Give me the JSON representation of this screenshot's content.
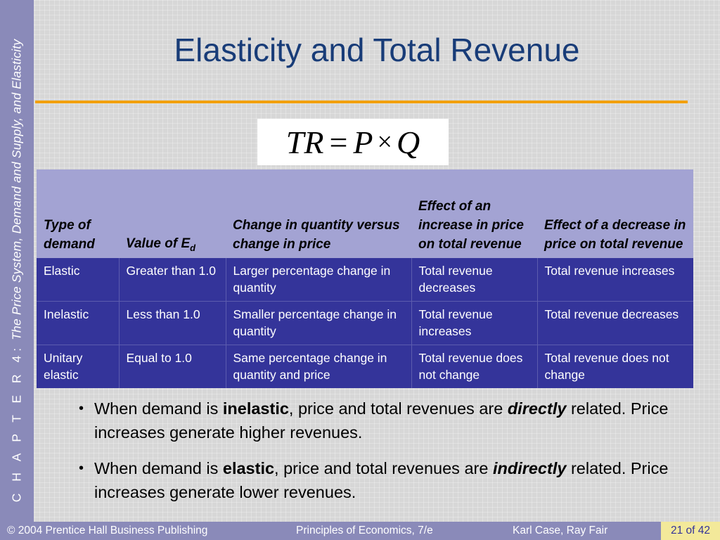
{
  "sidebar": {
    "chapter_label": "C H A P T E R  4:",
    "chapter_title": "The Price System, Demand and Supply, and Elasticity"
  },
  "slide": {
    "title": "Elasticity and Total Revenue",
    "formula": {
      "lhs": "TR",
      "eq": "=",
      "p": "P",
      "times": "×",
      "q": "Q"
    }
  },
  "table": {
    "headers": {
      "type": "Type of demand",
      "value_prefix": "Value of E",
      "value_sub": "d",
      "change": "Change in quantity versus change in price",
      "increase": "Effect of an increase in price on total revenue",
      "decrease": "Effect of a decrease in price on total revenue"
    },
    "rows": [
      [
        "Elastic",
        "Greater than 1.0",
        "Larger percentage change in quantity",
        "Total revenue decreases",
        "Total revenue increases"
      ],
      [
        "Inelastic",
        "Less than 1.0",
        "Smaller percentage change in quantity",
        "Total revenue increases",
        "Total revenue decreases"
      ],
      [
        "Unitary elastic",
        "Equal to 1.0",
        "Same percentage change in quantity and price",
        "Total revenue does not change",
        "Total revenue does not change"
      ]
    ]
  },
  "bullets": [
    {
      "marker": "•",
      "pre": "When demand is ",
      "bold": "inelastic",
      "mid": ", price and total revenues are ",
      "emph": "directly",
      "post": " related.   Price increases generate higher revenues."
    },
    {
      "marker": "•",
      "pre": "When demand is ",
      "bold": "elastic",
      "mid": ", price and total revenues are ",
      "emph": "indirectly",
      "post": " related.  Price increases generate lower revenues."
    }
  ],
  "footer": {
    "copyright": "© 2004 Prentice Hall Business Publishing",
    "book": "Principles of Economics, 7/e",
    "authors": "Karl Case, Ray Fair",
    "page": "21",
    "of": "of",
    "total": "42"
  },
  "colors": {
    "title": "#183c78",
    "rule": "#f2a000",
    "header_bg": "#a3a3d3",
    "body_bg": "#34349a",
    "sidebar": "#8a8ab9",
    "page_box": "#f3e99a"
  }
}
